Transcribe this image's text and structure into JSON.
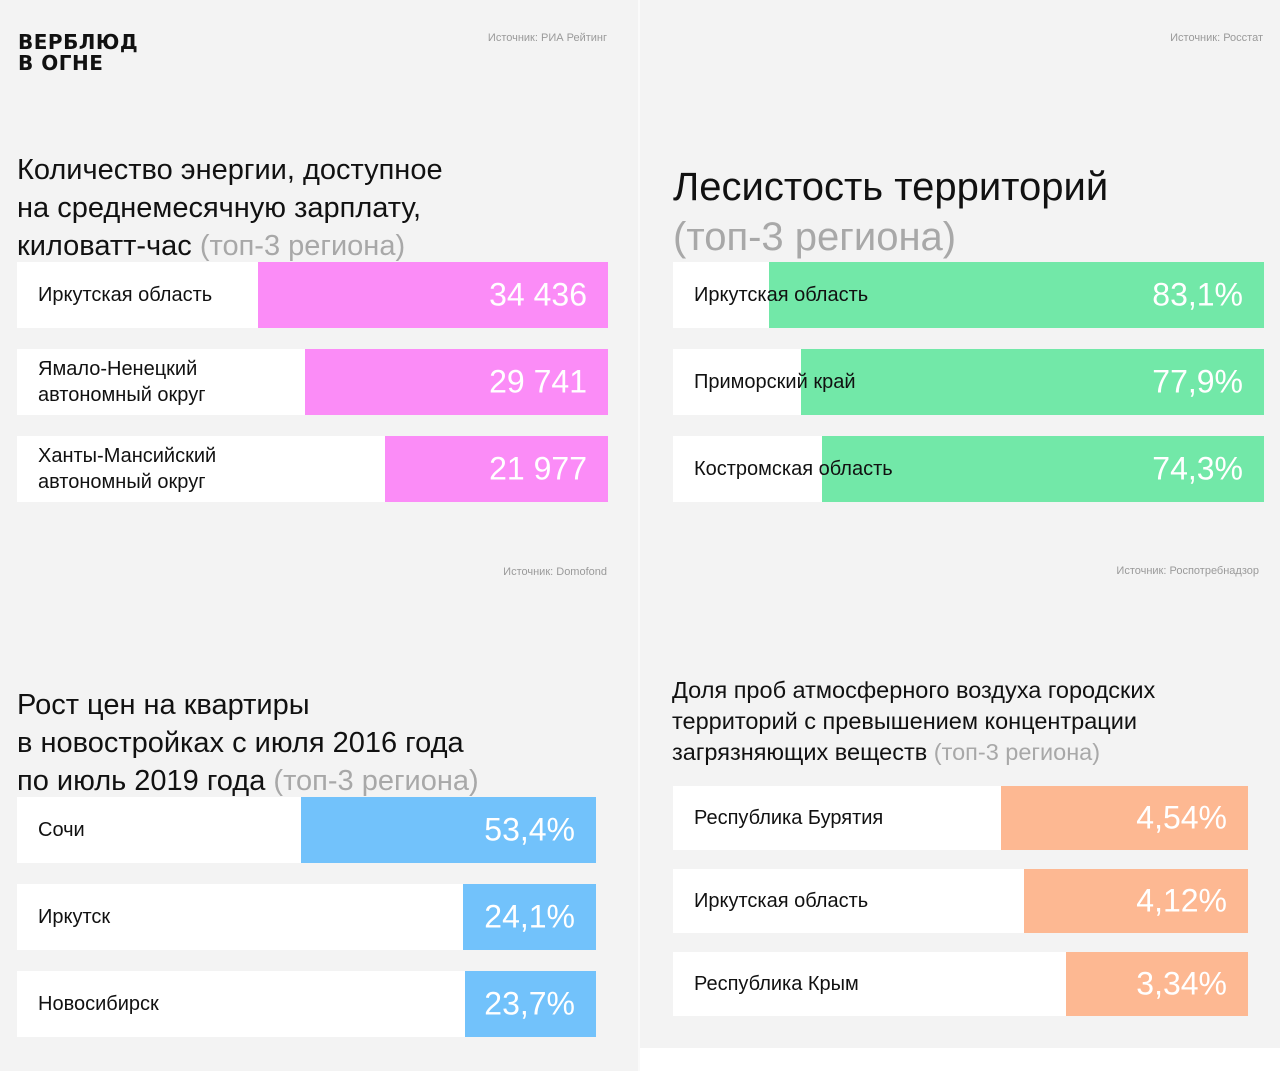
{
  "logo": {
    "line1": "ВЕРБЛЮД",
    "line2": "В ОГНЕ"
  },
  "colors": {
    "pink": "#fb8cf7",
    "green": "#72e8a8",
    "blue": "#72c2fb",
    "orange": "#fdb892",
    "muted": "#a8a8a8"
  },
  "charts": [
    {
      "source": "Источник: РИА Рейтинг",
      "title_main": "Количество энергии, доступное\nна среднемесячную зарплату,\nкиловатт-час ",
      "title_muted": "(топ-3 региона)",
      "color": "#fb8cf7",
      "max": 34436,
      "rows": [
        {
          "label": "Иркутская область",
          "value": 34436,
          "display": "34 436"
        },
        {
          "label": "Ямало-Ненецкий\nавтономный округ",
          "value": 29741,
          "display": "29 741"
        },
        {
          "label": "Ханты-Мансийский\nавтономный округ",
          "value": 21977,
          "display": "21 977"
        }
      ]
    },
    {
      "source": "Источник: Росстат",
      "title_main": "Лесистость территорий\n",
      "title_muted": "(топ-3 региона)",
      "color": "#72e8a8",
      "max": 83.1,
      "rows": [
        {
          "label": "Иркутская область",
          "value": 83.1,
          "display": "83,1%"
        },
        {
          "label": "Приморский край",
          "value": 77.9,
          "display": "77,9%"
        },
        {
          "label": "Костромская область",
          "value": 74.3,
          "display": "74,3%"
        }
      ]
    },
    {
      "source": "Источник: Domofond",
      "title_main": "Рост цен на квартиры\nв новостройках с июля 2016 года\nпо июль 2019 года ",
      "title_muted": "(топ-3 региона)",
      "color": "#72c2fb",
      "max": 53.4,
      "rows": [
        {
          "label": "Сочи",
          "value": 53.4,
          "display": "53,4%"
        },
        {
          "label": "Иркутск",
          "value": 24.1,
          "display": "24,1%"
        },
        {
          "label": "Новосибирск",
          "value": 23.7,
          "display": "23,7%"
        }
      ]
    },
    {
      "source": "Источник: Роспотребнадзор",
      "title_main": "Доля проб атмосферного воздуха городских\nтерриторий с превышением концентрации\nзагрязняющих веществ ",
      "title_muted": "(топ-3 региона)",
      "color": "#fdb892",
      "max": 4.54,
      "rows": [
        {
          "label": "Республика Бурятия",
          "value": 4.54,
          "display": "4,54%"
        },
        {
          "label": "Иркутская область",
          "value": 4.12,
          "display": "4,12%"
        },
        {
          "label": "Республика Крым",
          "value": 3.34,
          "display": "3,34%"
        }
      ]
    }
  ],
  "chart_data": [
    {
      "type": "bar",
      "title": "Количество энергии, доступное на среднемесячную зарплату, киловатт-час (топ-3 региона)",
      "categories": [
        "Иркутская область",
        "Ямало-Ненецкий автономный округ",
        "Ханты-Мансийский автономный округ"
      ],
      "values": [
        34436,
        29741,
        21977
      ]
    },
    {
      "type": "bar",
      "title": "Лесистость территорий (топ-3 региона)",
      "categories": [
        "Иркутская область",
        "Приморский край",
        "Костромская область"
      ],
      "values": [
        83.1,
        77.9,
        74.3
      ]
    },
    {
      "type": "bar",
      "title": "Рост цен на квартиры в новостройках с июля 2016 года по июль 2019 года (топ-3 региона)",
      "categories": [
        "Сочи",
        "Иркутск",
        "Новосибирск"
      ],
      "values": [
        53.4,
        24.1,
        23.7
      ]
    },
    {
      "type": "bar",
      "title": "Доля проб атмосферного воздуха городских территорий с превышением концентрации загрязняющих веществ (топ-3 региона)",
      "categories": [
        "Республика Бурятия",
        "Иркутская область",
        "Республика Крым"
      ],
      "values": [
        4.54,
        4.12,
        3.34
      ]
    }
  ]
}
